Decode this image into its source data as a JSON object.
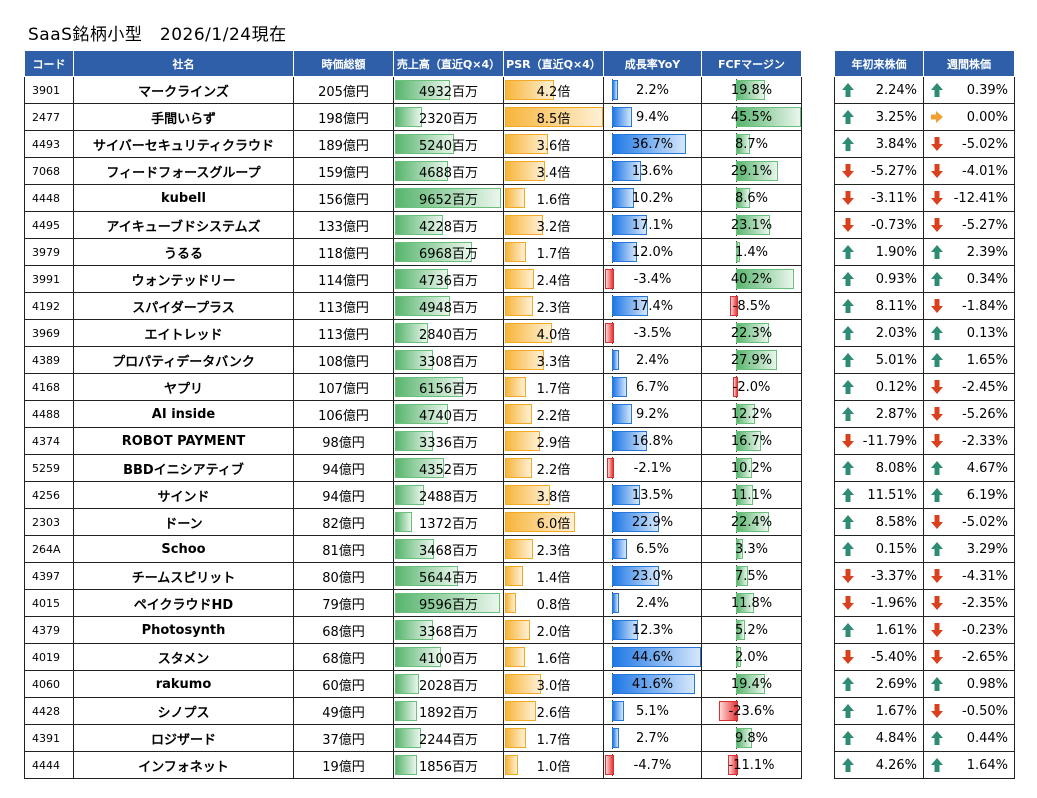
{
  "title": "SaaS銘柄小型　2026/1/24現在",
  "headers": {
    "code": "コード",
    "name": "社名",
    "mcap": "時価総額",
    "sales": "売上高（直近Q×4）",
    "psr": "PSR（直近Q×4）",
    "growth": "成長率YoY",
    "fcf": "FCFマージン",
    "ytd": "年初来株価",
    "weekly": "週間株価"
  },
  "colors": {
    "header": "#2e5fa8",
    "up": "#2e8b74",
    "down": "#d9401e",
    "flat": "#f0a030"
  },
  "rows": [
    {
      "code": "3901",
      "name": "マークラインズ",
      "mcap": "205億円",
      "sales": "4932百万",
      "sales_v": 4932,
      "psr": "4.2倍",
      "psr_v": 4.2,
      "growth": "2.2%",
      "growth_v": 2.2,
      "fcf": "19.8%",
      "fcf_v": 19.8,
      "ytd": "2.24%",
      "ytd_dir": "up",
      "weekly": "0.39%",
      "weekly_dir": "up"
    },
    {
      "code": "2477",
      "name": "手間いらず",
      "mcap": "198億円",
      "sales": "2320百万",
      "sales_v": 2320,
      "psr": "8.5倍",
      "psr_v": 8.5,
      "growth": "9.4%",
      "growth_v": 9.4,
      "fcf": "45.5%",
      "fcf_v": 45.5,
      "ytd": "3.25%",
      "ytd_dir": "up",
      "weekly": "0.00%",
      "weekly_dir": "flat"
    },
    {
      "code": "4493",
      "name": "サイバーセキュリティクラウド",
      "mcap": "189億円",
      "sales": "5240百万",
      "sales_v": 5240,
      "psr": "3.6倍",
      "psr_v": 3.6,
      "growth": "36.7%",
      "growth_v": 36.7,
      "fcf": "8.7%",
      "fcf_v": 8.7,
      "ytd": "3.84%",
      "ytd_dir": "up",
      "weekly": "-5.02%",
      "weekly_dir": "down"
    },
    {
      "code": "7068",
      "name": "フィードフォースグループ",
      "mcap": "159億円",
      "sales": "4688百万",
      "sales_v": 4688,
      "psr": "3.4倍",
      "psr_v": 3.4,
      "growth": "13.6%",
      "growth_v": 13.6,
      "fcf": "29.1%",
      "fcf_v": 29.1,
      "ytd": "-5.27%",
      "ytd_dir": "down",
      "weekly": "-4.01%",
      "weekly_dir": "down"
    },
    {
      "code": "4448",
      "name": "kubell",
      "mcap": "156億円",
      "sales": "9652百万",
      "sales_v": 9652,
      "psr": "1.6倍",
      "psr_v": 1.6,
      "growth": "10.2%",
      "growth_v": 10.2,
      "fcf": "8.6%",
      "fcf_v": 8.6,
      "ytd": "-3.11%",
      "ytd_dir": "down",
      "weekly": "-12.41%",
      "weekly_dir": "down"
    },
    {
      "code": "4495",
      "name": "アイキューブドシステムズ",
      "mcap": "133億円",
      "sales": "4228百万",
      "sales_v": 4228,
      "psr": "3.2倍",
      "psr_v": 3.2,
      "growth": "17.1%",
      "growth_v": 17.1,
      "fcf": "23.1%",
      "fcf_v": 23.1,
      "ytd": "-0.73%",
      "ytd_dir": "down",
      "weekly": "-5.27%",
      "weekly_dir": "down"
    },
    {
      "code": "3979",
      "name": "うるる",
      "mcap": "118億円",
      "sales": "6968百万",
      "sales_v": 6968,
      "psr": "1.7倍",
      "psr_v": 1.7,
      "growth": "12.0%",
      "growth_v": 12.0,
      "fcf": "1.4%",
      "fcf_v": 1.4,
      "ytd": "1.90%",
      "ytd_dir": "up",
      "weekly": "2.39%",
      "weekly_dir": "up"
    },
    {
      "code": "3991",
      "name": "ウォンテッドリー",
      "mcap": "114億円",
      "sales": "4736百万",
      "sales_v": 4736,
      "psr": "2.4倍",
      "psr_v": 2.4,
      "growth": "-3.4%",
      "growth_v": -3.4,
      "fcf": "40.2%",
      "fcf_v": 40.2,
      "ytd": "0.93%",
      "ytd_dir": "up",
      "weekly": "0.34%",
      "weekly_dir": "up"
    },
    {
      "code": "4192",
      "name": "スパイダープラス",
      "mcap": "113億円",
      "sales": "4948百万",
      "sales_v": 4948,
      "psr": "2.3倍",
      "psr_v": 2.3,
      "growth": "17.4%",
      "growth_v": 17.4,
      "fcf": "-8.5%",
      "fcf_v": -8.5,
      "ytd": "8.11%",
      "ytd_dir": "up",
      "weekly": "-1.84%",
      "weekly_dir": "down"
    },
    {
      "code": "3969",
      "name": "エイトレッド",
      "mcap": "113億円",
      "sales": "2840百万",
      "sales_v": 2840,
      "psr": "4.0倍",
      "psr_v": 4.0,
      "growth": "-3.5%",
      "growth_v": -3.5,
      "fcf": "22.3%",
      "fcf_v": 22.3,
      "ytd": "2.03%",
      "ytd_dir": "up",
      "weekly": "0.13%",
      "weekly_dir": "up"
    },
    {
      "code": "4389",
      "name": "プロパティデータバンク",
      "mcap": "108億円",
      "sales": "3308百万",
      "sales_v": 3308,
      "psr": "3.3倍",
      "psr_v": 3.3,
      "growth": "2.4%",
      "growth_v": 2.4,
      "fcf": "27.9%",
      "fcf_v": 27.9,
      "ytd": "5.01%",
      "ytd_dir": "up",
      "weekly": "1.65%",
      "weekly_dir": "up"
    },
    {
      "code": "4168",
      "name": "ヤプリ",
      "mcap": "107億円",
      "sales": "6156百万",
      "sales_v": 6156,
      "psr": "1.7倍",
      "psr_v": 1.7,
      "growth": "6.7%",
      "growth_v": 6.7,
      "fcf": "-2.0%",
      "fcf_v": -2.0,
      "ytd": "0.12%",
      "ytd_dir": "up",
      "weekly": "-2.45%",
      "weekly_dir": "down"
    },
    {
      "code": "4488",
      "name": "AI inside",
      "mcap": "106億円",
      "sales": "4740百万",
      "sales_v": 4740,
      "psr": "2.2倍",
      "psr_v": 2.2,
      "growth": "9.2%",
      "growth_v": 9.2,
      "fcf": "12.2%",
      "fcf_v": 12.2,
      "ytd": "2.87%",
      "ytd_dir": "up",
      "weekly": "-5.26%",
      "weekly_dir": "down"
    },
    {
      "code": "4374",
      "name": "ROBOT PAYMENT",
      "mcap": "98億円",
      "sales": "3336百万",
      "sales_v": 3336,
      "psr": "2.9倍",
      "psr_v": 2.9,
      "growth": "16.8%",
      "growth_v": 16.8,
      "fcf": "16.7%",
      "fcf_v": 16.7,
      "ytd": "-11.79%",
      "ytd_dir": "down",
      "weekly": "-2.33%",
      "weekly_dir": "down"
    },
    {
      "code": "5259",
      "name": "BBDイニシアティブ",
      "mcap": "94億円",
      "sales": "4352百万",
      "sales_v": 4352,
      "psr": "2.2倍",
      "psr_v": 2.2,
      "growth": "-2.1%",
      "growth_v": -2.1,
      "fcf": "10.2%",
      "fcf_v": 10.2,
      "ytd": "8.08%",
      "ytd_dir": "up",
      "weekly": "4.67%",
      "weekly_dir": "up"
    },
    {
      "code": "4256",
      "name": "サインド",
      "mcap": "94億円",
      "sales": "2488百万",
      "sales_v": 2488,
      "psr": "3.8倍",
      "psr_v": 3.8,
      "growth": "13.5%",
      "growth_v": 13.5,
      "fcf": "11.1%",
      "fcf_v": 11.1,
      "ytd": "11.51%",
      "ytd_dir": "up",
      "weekly": "6.19%",
      "weekly_dir": "up"
    },
    {
      "code": "2303",
      "name": "ドーン",
      "mcap": "82億円",
      "sales": "1372百万",
      "sales_v": 1372,
      "psr": "6.0倍",
      "psr_v": 6.0,
      "growth": "22.9%",
      "growth_v": 22.9,
      "fcf": "22.4%",
      "fcf_v": 22.4,
      "ytd": "8.58%",
      "ytd_dir": "up",
      "weekly": "-5.02%",
      "weekly_dir": "down"
    },
    {
      "code": "264A",
      "name": "Schoo",
      "mcap": "81億円",
      "sales": "3468百万",
      "sales_v": 3468,
      "psr": "2.3倍",
      "psr_v": 2.3,
      "growth": "6.5%",
      "growth_v": 6.5,
      "fcf": "3.3%",
      "fcf_v": 3.3,
      "ytd": "0.15%",
      "ytd_dir": "up",
      "weekly": "3.29%",
      "weekly_dir": "up"
    },
    {
      "code": "4397",
      "name": "チームスピリット",
      "mcap": "80億円",
      "sales": "5644百万",
      "sales_v": 5644,
      "psr": "1.4倍",
      "psr_v": 1.4,
      "growth": "23.0%",
      "growth_v": 23.0,
      "fcf": "7.5%",
      "fcf_v": 7.5,
      "ytd": "-3.37%",
      "ytd_dir": "down",
      "weekly": "-4.31%",
      "weekly_dir": "down"
    },
    {
      "code": "4015",
      "name": "ペイクラウドHD",
      "mcap": "79億円",
      "sales": "9596百万",
      "sales_v": 9596,
      "psr": "0.8倍",
      "psr_v": 0.8,
      "growth": "2.4%",
      "growth_v": 2.4,
      "fcf": "11.8%",
      "fcf_v": 11.8,
      "ytd": "-1.96%",
      "ytd_dir": "down",
      "weekly": "-2.35%",
      "weekly_dir": "down"
    },
    {
      "code": "4379",
      "name": "Photosynth",
      "mcap": "68億円",
      "sales": "3368百万",
      "sales_v": 3368,
      "psr": "2.0倍",
      "psr_v": 2.0,
      "growth": "12.3%",
      "growth_v": 12.3,
      "fcf": "5.2%",
      "fcf_v": 5.2,
      "ytd": "1.61%",
      "ytd_dir": "up",
      "weekly": "-0.23%",
      "weekly_dir": "down"
    },
    {
      "code": "4019",
      "name": "スタメン",
      "mcap": "68億円",
      "sales": "4100百万",
      "sales_v": 4100,
      "psr": "1.6倍",
      "psr_v": 1.6,
      "growth": "44.6%",
      "growth_v": 44.6,
      "fcf": "2.0%",
      "fcf_v": 2.0,
      "ytd": "-5.40%",
      "ytd_dir": "down",
      "weekly": "-2.65%",
      "weekly_dir": "down"
    },
    {
      "code": "4060",
      "name": "rakumo",
      "mcap": "60億円",
      "sales": "2028百万",
      "sales_v": 2028,
      "psr": "3.0倍",
      "psr_v": 3.0,
      "growth": "41.6%",
      "growth_v": 41.6,
      "fcf": "19.4%",
      "fcf_v": 19.4,
      "ytd": "2.69%",
      "ytd_dir": "up",
      "weekly": "0.98%",
      "weekly_dir": "up"
    },
    {
      "code": "4428",
      "name": "シノプス",
      "mcap": "49億円",
      "sales": "1892百万",
      "sales_v": 1892,
      "psr": "2.6倍",
      "psr_v": 2.6,
      "growth": "5.1%",
      "growth_v": 5.1,
      "fcf": "-23.6%",
      "fcf_v": -23.6,
      "ytd": "1.67%",
      "ytd_dir": "up",
      "weekly": "-0.50%",
      "weekly_dir": "down"
    },
    {
      "code": "4391",
      "name": "ロジザード",
      "mcap": "37億円",
      "sales": "2244百万",
      "sales_v": 2244,
      "psr": "1.7倍",
      "psr_v": 1.7,
      "growth": "2.7%",
      "growth_v": 2.7,
      "fcf": "9.8%",
      "fcf_v": 9.8,
      "ytd": "4.84%",
      "ytd_dir": "up",
      "weekly": "0.44%",
      "weekly_dir": "up"
    },
    {
      "code": "4444",
      "name": "インフォネット",
      "mcap": "19億円",
      "sales": "1856百万",
      "sales_v": 1856,
      "psr": "1.0倍",
      "psr_v": 1.0,
      "growth": "-4.7%",
      "growth_v": -4.7,
      "fcf": "-11.1%",
      "fcf_v": -11.1,
      "ytd": "4.26%",
      "ytd_dir": "up",
      "weekly": "1.64%",
      "weekly_dir": "up"
    }
  ]
}
